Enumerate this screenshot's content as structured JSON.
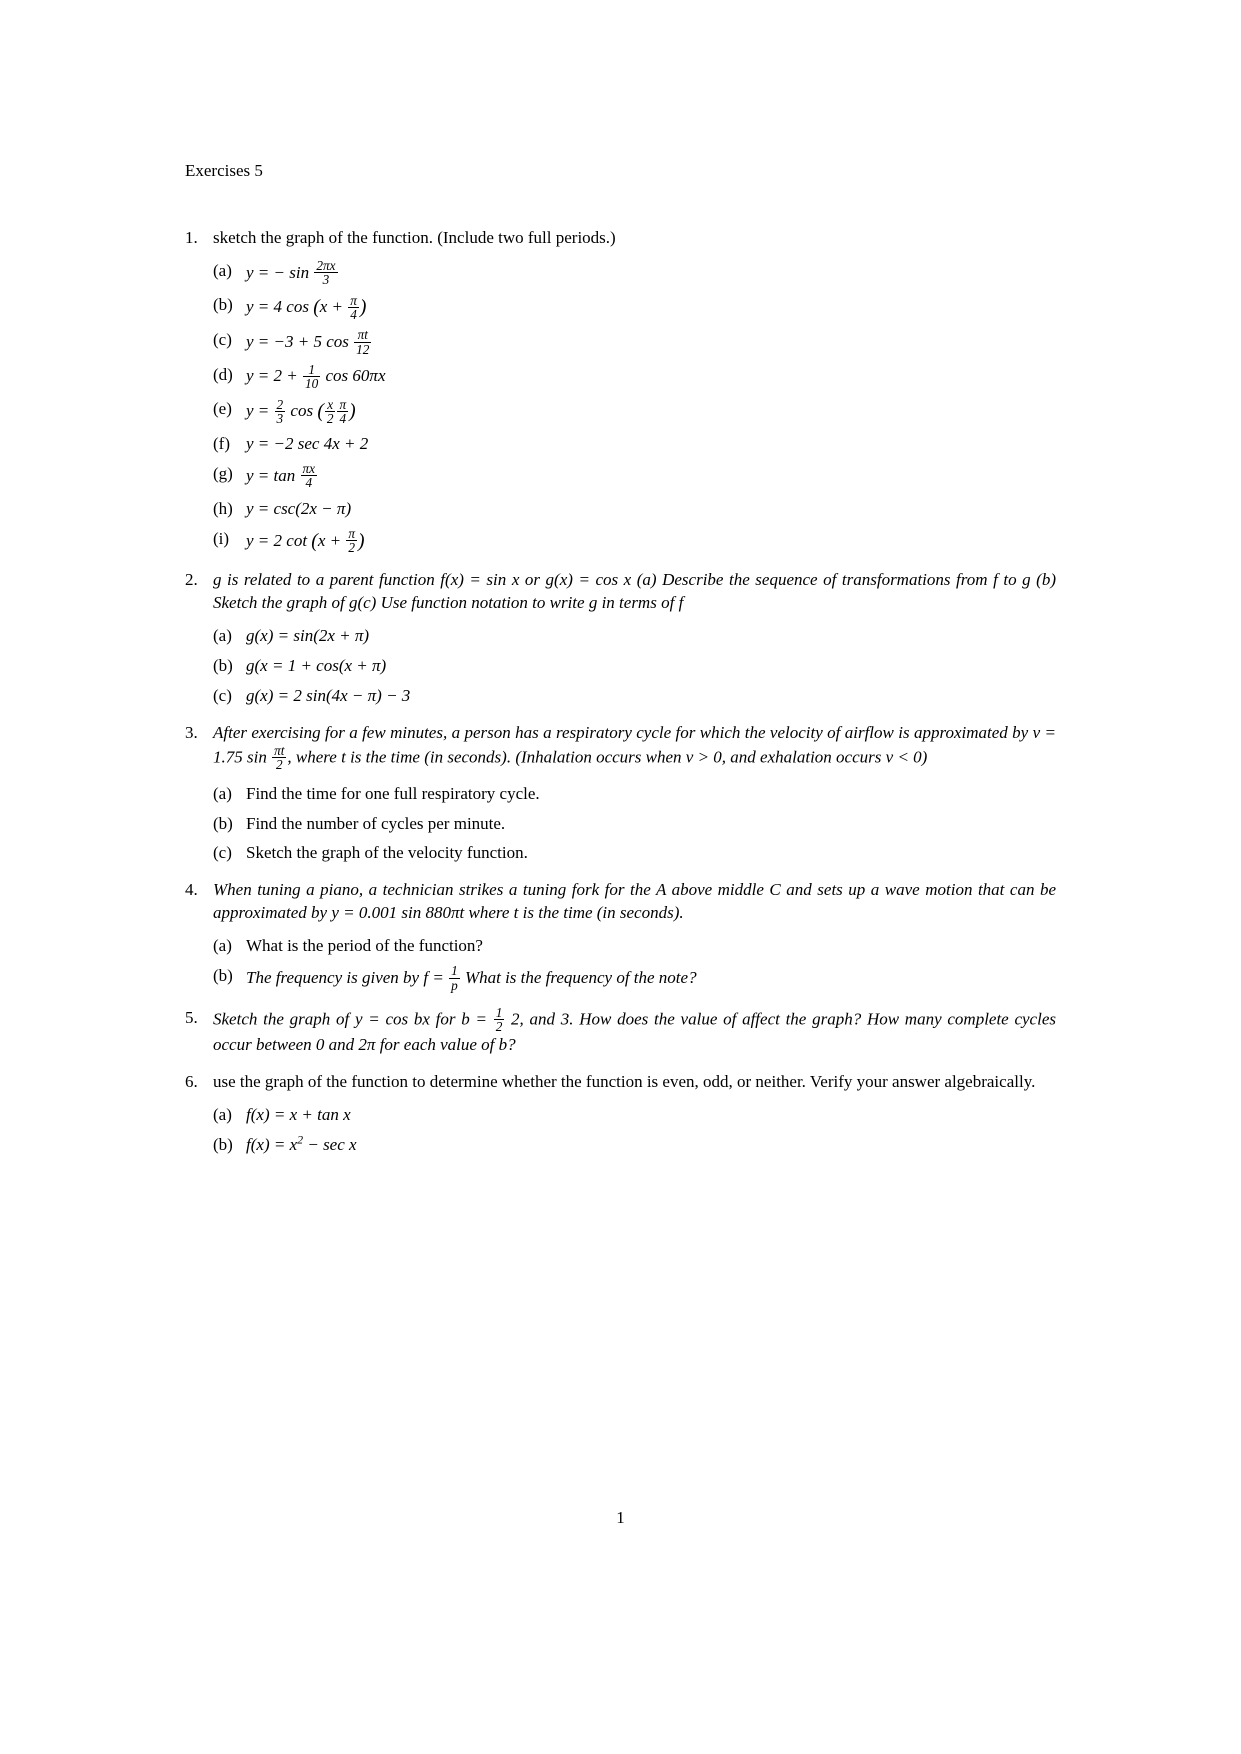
{
  "title": "Exercises 5",
  "problems": {
    "p1": {
      "text": "sketch the graph of the function. (Include two full periods.)",
      "subs": {
        "a": "y = − sin <FRAC>2πx|3</FRAC>",
        "b": "y = 4 cos <LP>(</LP>x + <FRAC>π|4</FRAC><RP>)</RP>",
        "c": "y = −3 + 5 cos <FRAC>πt|12</FRAC>",
        "d": "y = 2 + <FRAC>1|10</FRAC> cos 60πx",
        "e": "y = <FRAC>2|3</FRAC> cos <LP>(</LP><FRAC>x|2</FRAC><FRAC>π|4</FRAC><RP>)</RP>",
        "f": "y = −2 sec 4x + 2",
        "g": "y = tan <FRAC>πx|4</FRAC>",
        "h": "y = csc(2x − π)",
        "i": "y = 2 cot <LP>(</LP>x + <FRAC>π|2</FRAC><RP>)</RP>"
      }
    },
    "p2": {
      "text": "g is related to a parent function f(x) = sin x or g(x) = cos x (a) Describe the sequence of transformations from f to g (b) Sketch the graph of g(c) Use function notation to write g in terms of f",
      "subs": {
        "a": "g(x) = sin(2x + π)",
        "b": "g(x = 1 + cos(x + π)",
        "c": "g(x) = 2 sin(4x − π) − 3"
      }
    },
    "p3": {
      "text": "After exercising for a few minutes, a person has a respiratory cycle for which the velocity of airflow is approximated by v = 1.75 sin <FRAC>πt|2</FRAC>, where t is the time (in seconds). (Inhalation occurs when v > 0, and exhalation occurs v < 0)",
      "subs": {
        "a": "Find the time for one full respiratory cycle.",
        "b": "Find the number of cycles per minute.",
        "c": "Sketch the graph of the velocity function."
      }
    },
    "p4": {
      "text": "When tuning a piano, a technician strikes a tuning fork for the A above middle C and sets up a wave motion that can be approximated by y = 0.001 sin 880πt where t is the time (in seconds).",
      "subs": {
        "a": "What is the period of the function?",
        "b": "The frequency is given by f = <FRAC>1|p</FRAC> What is the frequency of the note?"
      }
    },
    "p5": {
      "text": "Sketch the graph of y = cos bx for b = <FRAC>1|2</FRAC> 2, and 3. How does the value of affect the graph? How many complete cycles occur between 0 and 2π for each value of b?"
    },
    "p6": {
      "text": "use the graph of the function to determine whether the function is even, odd, or neither. Verify your answer algebraically.",
      "subs": {
        "a": "f(x) = x + tan x",
        "b": "f(x) = x<SUP>2</SUP> − sec x"
      }
    }
  },
  "page_number": "1"
}
